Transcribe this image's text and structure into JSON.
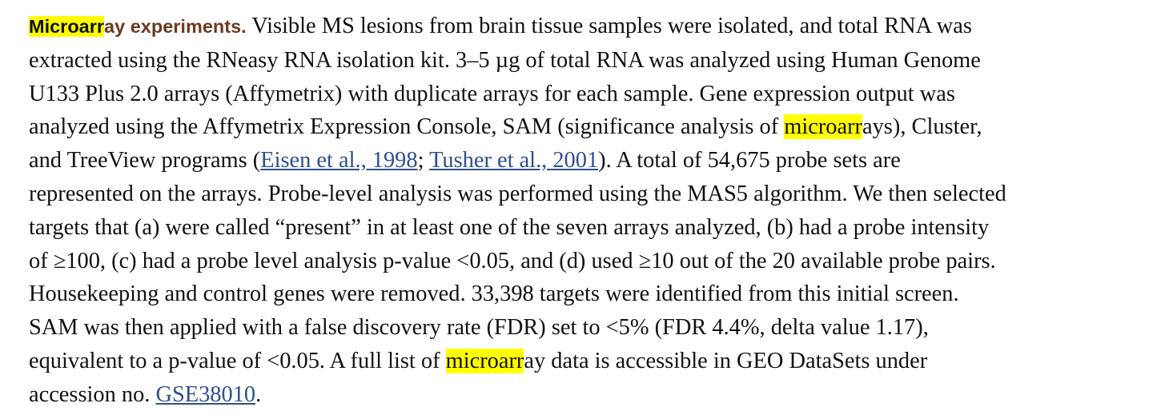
{
  "heading": {
    "highlight": "Microarr",
    "rest": "ay experiments."
  },
  "lines": {
    "l1": "Visible MS lesions from brain tissue samples were isolated, and total RNA was",
    "l2": "extracted using the RNeasy RNA isolation kit. 3–5 µg of total RNA was analyzed using Human Genome",
    "l3": "U133 Plus 2.0 arrays (Affymetrix) with duplicate arrays for each sample. Gene expression output was",
    "l4_before": "analyzed using the Affymetrix Expression Console, SAM (significance analysis of ",
    "l4_highlight": "microarr",
    "l4_after": "ays), Cluster,",
    "l5_before": "and TreeView programs (",
    "l5_ref1": "Eisen et al., 1998",
    "l5_sep": "; ",
    "l5_ref2": "Tusher et al., 2001",
    "l5_after": "). A total of 54,675 probe sets are",
    "l6": "represented on the arrays. Probe-level analysis was performed using the MAS5 algorithm. We then selected",
    "l7": "targets that (a) were called “present” in at least one of the seven arrays analyzed, (b) had a probe intensity",
    "l8": "of ≥100, (c) had a probe level analysis p-value <0.05, and (d) used ≥10 out of the 20 available probe pairs.",
    "l9": "Housekeeping and control genes were removed. 33,398 targets were identified from this initial screen.",
    "l10": "SAM was then applied with a false discovery rate (FDR) set to <5% (FDR 4.4%, delta value 1.17),",
    "l11_before": "equivalent to a p-value of <0.05. A full list of ",
    "l11_highlight": "microarr",
    "l11_after": "ay data is accessible in GEO DataSets under",
    "l12_before": "accession no. ",
    "l12_link": "GSE38010",
    "l12_after": "."
  },
  "colors": {
    "heading": "#6b3a1f",
    "highlight": "#ffff00",
    "link": "#2e4f8f",
    "text": "#111111"
  }
}
